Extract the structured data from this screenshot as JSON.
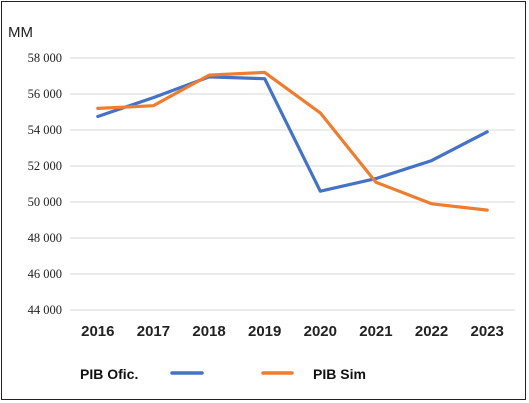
{
  "chart_data": {
    "type": "line",
    "unit_label": "MM",
    "categories": [
      "2016",
      "2017",
      "2018",
      "2019",
      "2020",
      "2021",
      "2022",
      "2023"
    ],
    "y_ticks": [
      {
        "value": 44000,
        "label": "44 000"
      },
      {
        "value": 46000,
        "label": "46 000"
      },
      {
        "value": 48000,
        "label": "48 000"
      },
      {
        "value": 50000,
        "label": "50 000"
      },
      {
        "value": 52000,
        "label": "52 000"
      },
      {
        "value": 54000,
        "label": "54 000"
      },
      {
        "value": 56000,
        "label": "56 000"
      },
      {
        "value": 58000,
        "label": "58 000"
      }
    ],
    "ylim": [
      44000,
      58000
    ],
    "grid": true,
    "legend_position": "bottom",
    "series": [
      {
        "name": "PIB  Ofic.",
        "color": "#4472C4",
        "values": [
          54750,
          55800,
          56950,
          56850,
          50600,
          51300,
          52300,
          53900
        ]
      },
      {
        "name": "PIB Sim",
        "color": "#ED7D31",
        "values": [
          55200,
          55350,
          57050,
          57200,
          54950,
          51100,
          49900,
          49550
        ]
      }
    ]
  }
}
